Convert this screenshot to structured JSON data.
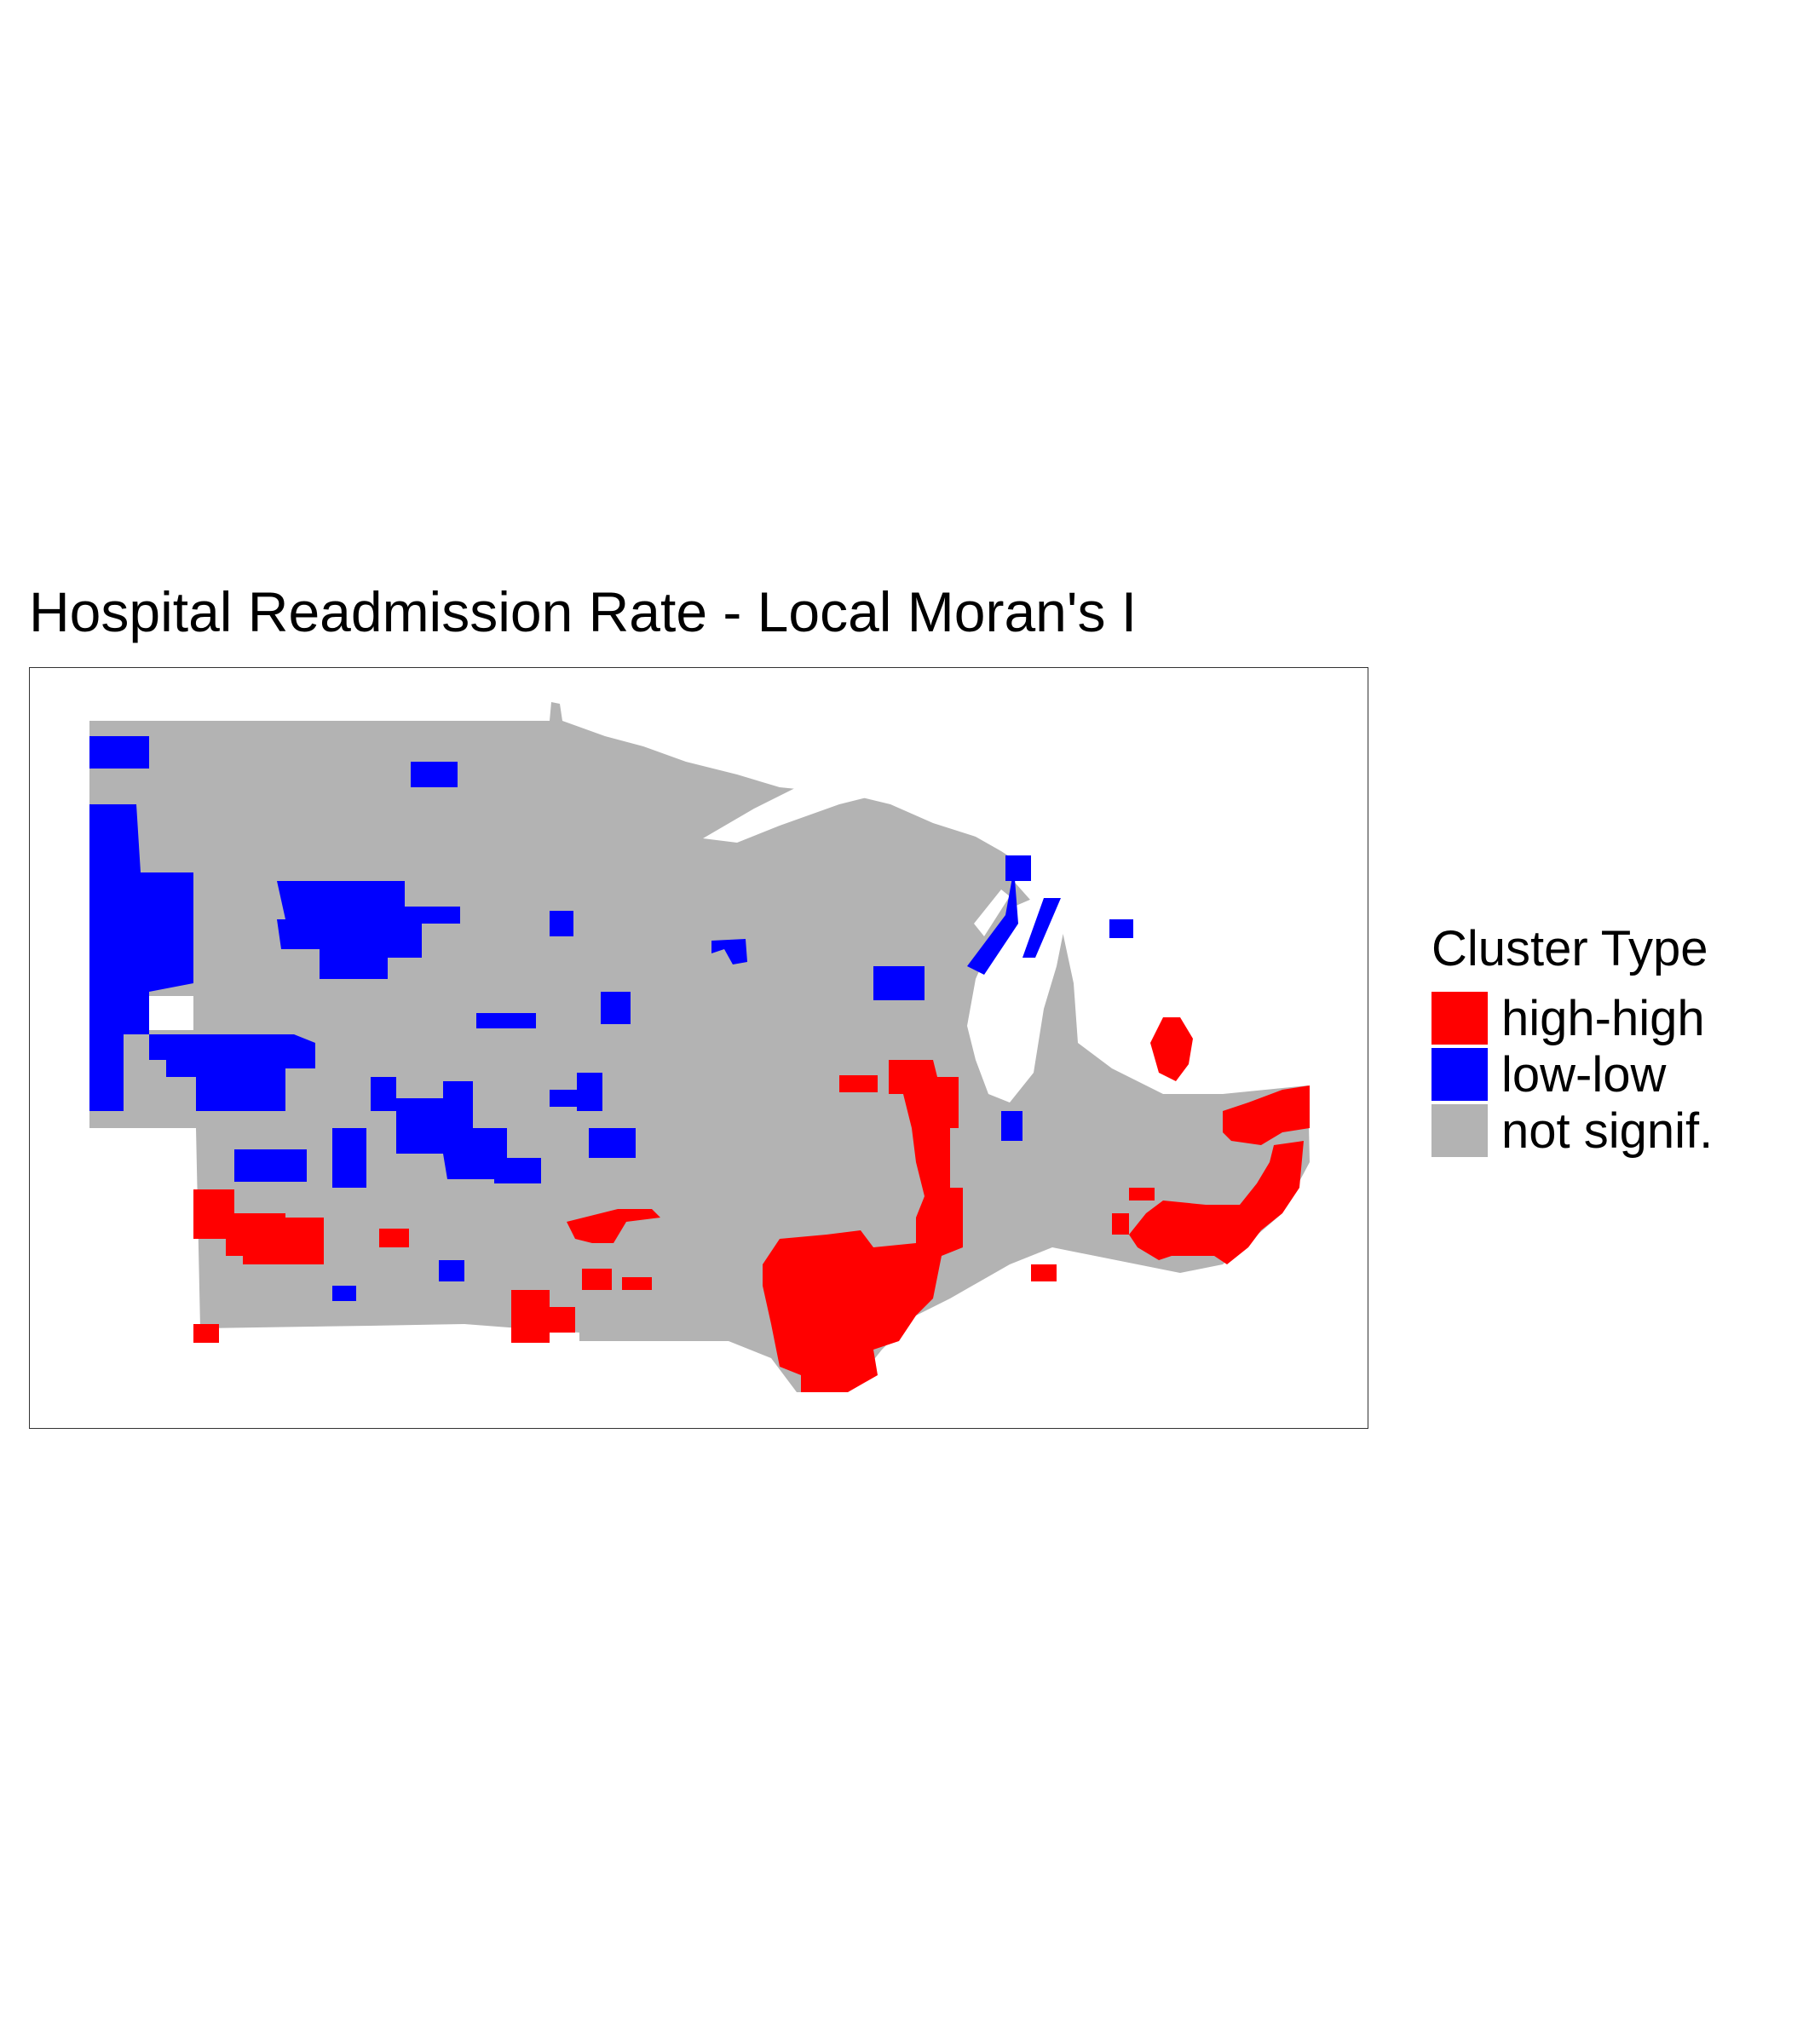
{
  "title": "Hospital Readmission Rate - Local Moran's I",
  "legend": {
    "title": "Cluster Type",
    "items": [
      {
        "label": "high-high",
        "color": "#ff0000"
      },
      {
        "label": "low-low",
        "color": "#0000ff"
      },
      {
        "label": "not signif.",
        "color": "#b3b3b3"
      }
    ]
  },
  "colors": {
    "base": "#b3b3b3",
    "water": "#ffffff",
    "high": "#ff0000",
    "low": "#0000ff"
  }
}
